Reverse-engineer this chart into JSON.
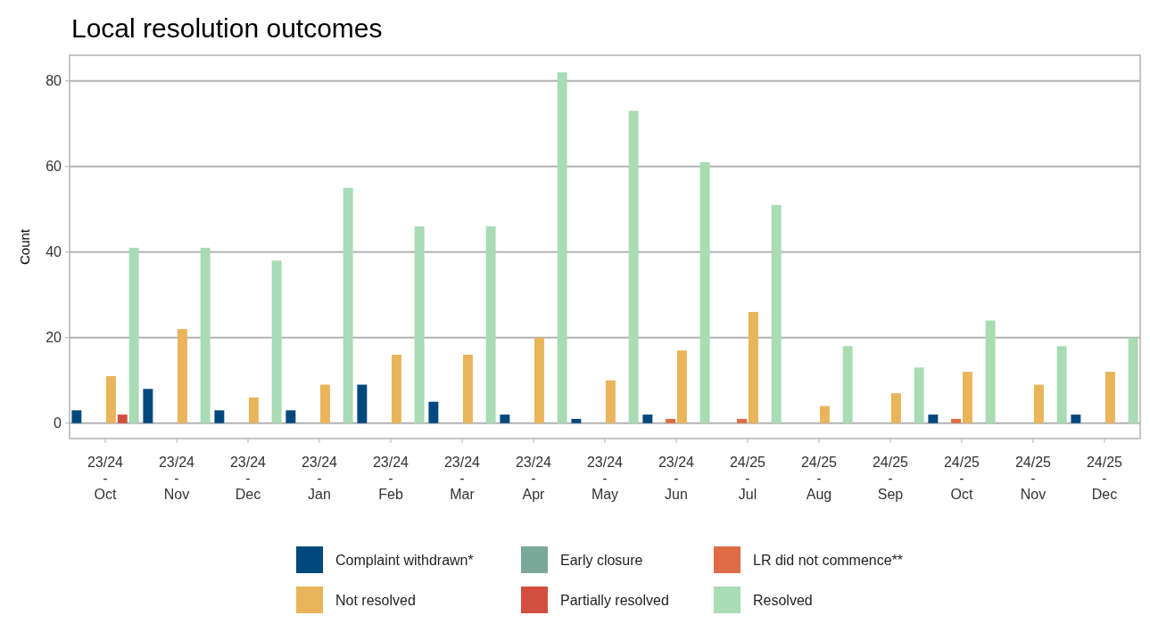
{
  "chart_data": {
    "type": "bar",
    "title": "Local resolution outcomes",
    "ylabel": "Count",
    "categories": [
      "23/24\n-\nOct",
      "23/24\n-\nNov",
      "23/24\n-\nDec",
      "23/24\n-\nJan",
      "23/24\n-\nFeb",
      "23/24\n-\nMar",
      "23/24\n-\nApr",
      "23/24\n-\nMay",
      "23/24\n-\nJun",
      "24/25\n-\nJul",
      "24/25\n-\nAug",
      "24/25\n-\nSep",
      "24/25\n-\nOct",
      "24/25\n-\nNov",
      "24/25\n-\nDec"
    ],
    "series": [
      {
        "name": "Complaint withdrawn*",
        "color": "#00497f",
        "values": [
          3,
          8,
          3,
          3,
          9,
          5,
          2,
          1,
          2,
          0,
          0,
          0,
          2,
          0,
          2
        ]
      },
      {
        "name": "Early closure",
        "color": "#7aa99a",
        "values": [
          0,
          0,
          0,
          0,
          0,
          0,
          0,
          0,
          0,
          0,
          0,
          0,
          0,
          0,
          0
        ]
      },
      {
        "name": "LR did not commence**",
        "color": "#e06c45",
        "values": [
          0,
          0,
          0,
          0,
          0,
          0,
          0,
          0,
          1,
          1,
          0,
          0,
          1,
          0,
          0
        ]
      },
      {
        "name": "Not resolved",
        "color": "#e9b45a",
        "values": [
          11,
          22,
          6,
          9,
          16,
          16,
          20,
          10,
          17,
          26,
          4,
          7,
          12,
          9,
          12
        ]
      },
      {
        "name": "Partially resolved",
        "color": "#d24e3e",
        "values": [
          2,
          0,
          0,
          0,
          0,
          0,
          0,
          0,
          0,
          0,
          0,
          0,
          0,
          0,
          0
        ]
      },
      {
        "name": "Resolved",
        "color": "#a9dbb5",
        "values": [
          41,
          41,
          38,
          55,
          46,
          46,
          82,
          73,
          61,
          51,
          18,
          13,
          24,
          18,
          20
        ]
      }
    ],
    "ylim": [
      -3.6,
      86
    ],
    "yticks": [
      0,
      20,
      40,
      60,
      80
    ],
    "grid": "y",
    "legend": "bottom"
  }
}
